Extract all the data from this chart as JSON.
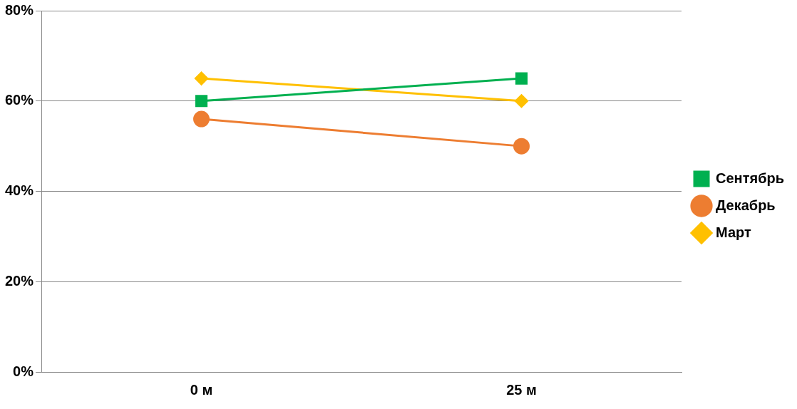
{
  "chart_data": {
    "type": "line",
    "categories": [
      "0 м",
      "25 м"
    ],
    "series": [
      {
        "name": "Сентябрь",
        "color": "#00b050",
        "values": [
          60,
          65
        ],
        "marker": "square"
      },
      {
        "name": "Декабрь",
        "color": "#ed7d31",
        "values": [
          56,
          50
        ],
        "marker": "circle"
      },
      {
        "name": "Март",
        "color": "#ffc000",
        "values": [
          65,
          60
        ],
        "marker": "diamond"
      }
    ],
    "ylim": [
      0,
      80
    ],
    "yticks": [
      {
        "value": 0,
        "label": "0%"
      },
      {
        "value": 20,
        "label": "20%"
      },
      {
        "value": 40,
        "label": "40%"
      },
      {
        "value": 60,
        "label": "60%"
      },
      {
        "value": 80,
        "label": "80%"
      }
    ],
    "grid": "y",
    "legend": "right"
  }
}
